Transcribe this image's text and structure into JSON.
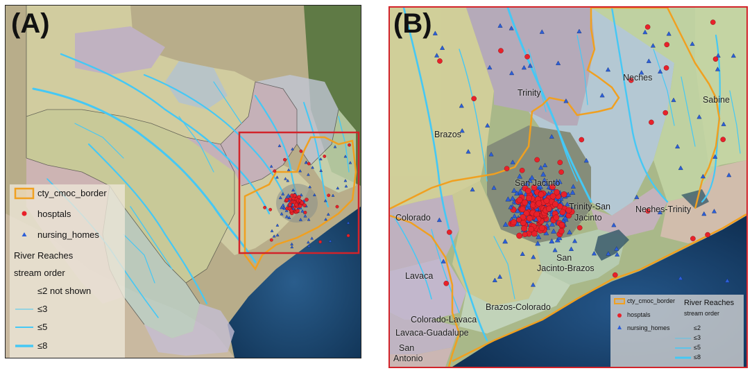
{
  "panel_a": {
    "label": "(A)",
    "legend": {
      "border_label": "cty_cmoc_border",
      "hospitals_label": "hosptals",
      "nursing_label": "nursing_homes",
      "reaches_title": "River Reaches",
      "stream_order_title": "stream order",
      "order_le2": "≤2 not shown",
      "order_le3": "≤3",
      "order_le5": "≤5",
      "order_le8": "≤8"
    }
  },
  "panel_b": {
    "label": "(B)",
    "basins": {
      "trinity": "Trinity",
      "brazos": "Brazos",
      "neches": "Neches",
      "sabine": "Sabine",
      "san_jacinto": "San Jacinto",
      "trinity_san_jacinto_1": "Trinity-San",
      "trinity_san_jacinto_2": "Jacinto",
      "neches_trinity": "Neches-Trinity",
      "colorado": "Colorado",
      "san_jacinto_brazos_1": "San",
      "san_jacinto_brazos_2": "Jacinto-Brazos",
      "lavaca": "Lavaca",
      "brazos_colorado": "Brazos-Colorado",
      "colorado_lavaca": "Colorado-Lavaca",
      "lavaca_guadalupe": "Lavaca-Guadalupe",
      "san_antonio_1": "San",
      "san_antonio_2": "Antonio"
    },
    "legend": {
      "border_label": "cty_cmoc_border",
      "hospitals_label": "hosptals",
      "nursing_label": "nursing_homes",
      "reaches_title": "River Reaches",
      "stream_order_title": "stream order",
      "order_le2": "≤2",
      "order_le3": "≤3",
      "order_le5": "≤5",
      "order_le8": "≤8"
    }
  },
  "colors": {
    "border_orange": "#f0a020",
    "hospital_red": "#e8212a",
    "nursing_blue": "#2d5fd8",
    "river_blue": "#45c8f5",
    "frame_red": "#d2232a",
    "gulf_blue": "#1f4a78"
  }
}
